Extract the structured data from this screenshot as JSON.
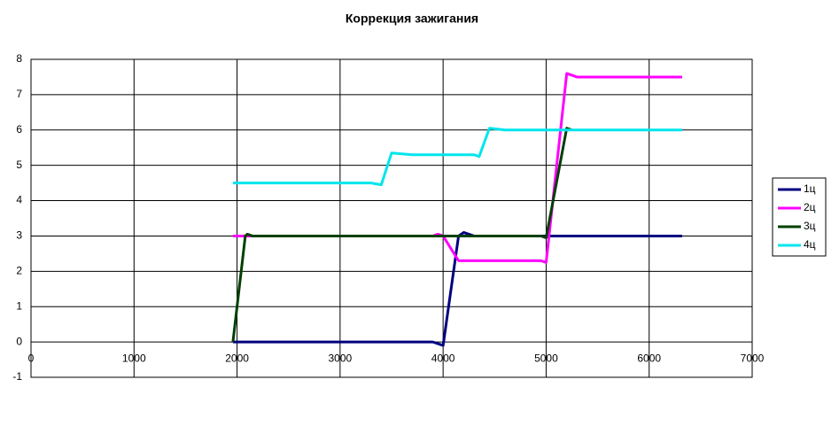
{
  "chart_data": {
    "type": "line",
    "title": "Коррекция зажигания",
    "xlim": [
      0,
      7000
    ],
    "xticks": [
      0,
      1000,
      2000,
      3000,
      4000,
      5000,
      6000,
      7000
    ],
    "ylim": [
      -1,
      8
    ],
    "yticks": [
      -1,
      0,
      1,
      2,
      3,
      4,
      5,
      6,
      7,
      8
    ],
    "grid": true,
    "legend": "right",
    "series": [
      {
        "name": "1ц",
        "color": "#000080",
        "x": [
          1960,
          3900,
          3950,
          4000,
          4150,
          4200,
          4300,
          6320
        ],
        "values": [
          0,
          0,
          -0.05,
          -0.1,
          3,
          3.1,
          3,
          3
        ]
      },
      {
        "name": "2ц",
        "color": "#ff00ff",
        "x": [
          1960,
          3900,
          3950,
          4000,
          4150,
          4250,
          4950,
          5000,
          5200,
          5300,
          6320
        ],
        "values": [
          3,
          3,
          3.05,
          3,
          2.3,
          2.3,
          2.3,
          2.25,
          7.6,
          7.5,
          7.5
        ]
      },
      {
        "name": "3ц",
        "color": "#004000",
        "x": [
          1960,
          2080,
          2100,
          2150,
          4950,
          5000,
          5200,
          5250
        ],
        "values": [
          0,
          3,
          3.05,
          3,
          3,
          2.95,
          6.05,
          6
        ]
      },
      {
        "name": "4ц",
        "color": "#00e5ee",
        "x": [
          1960,
          3300,
          3400,
          3500,
          3700,
          4300,
          4350,
          4450,
          4600,
          6320
        ],
        "values": [
          4.5,
          4.5,
          4.45,
          5.35,
          5.3,
          5.3,
          5.25,
          6.05,
          6,
          6
        ]
      }
    ]
  }
}
